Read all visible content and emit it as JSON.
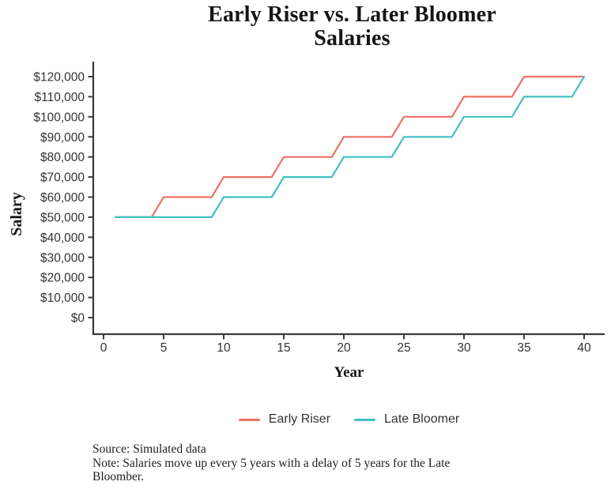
{
  "header": {
    "title_line1": "Early Riser vs. Later Bloomer",
    "title_line2": "Salaries"
  },
  "chart_data": {
    "type": "line",
    "title": "Early Riser vs. Later Bloomer Salaries",
    "xlabel": "Year",
    "ylabel": "Salary",
    "grid": false,
    "legend_position": "bottom",
    "xlim": [
      0,
      40
    ],
    "ylim": [
      0,
      120000
    ],
    "xticks": [
      0,
      5,
      10,
      15,
      20,
      25,
      30,
      35,
      40
    ],
    "ytick_values": [
      0,
      10000,
      20000,
      30000,
      40000,
      50000,
      60000,
      70000,
      80000,
      90000,
      100000,
      110000,
      120000
    ],
    "ytick_labels": [
      "$0",
      "$10,000",
      "$20,000",
      "$30,000",
      "$40,000",
      "$50,000",
      "$60,000",
      "$70,000",
      "$80,000",
      "$90,000",
      "$100,000",
      "$110,000",
      "$120,000"
    ],
    "x": [
      1,
      2,
      3,
      4,
      5,
      6,
      7,
      8,
      9,
      10,
      11,
      12,
      13,
      14,
      15,
      16,
      17,
      18,
      19,
      20,
      21,
      22,
      23,
      24,
      25,
      26,
      27,
      28,
      29,
      30,
      31,
      32,
      33,
      34,
      35,
      36,
      37,
      38,
      39,
      40
    ],
    "series": [
      {
        "name": "Early Riser",
        "color": "#ED7167",
        "values": [
          50000,
          50000,
          50000,
          50000,
          60000,
          60000,
          60000,
          60000,
          60000,
          70000,
          70000,
          70000,
          70000,
          70000,
          80000,
          80000,
          80000,
          80000,
          80000,
          90000,
          90000,
          90000,
          90000,
          90000,
          100000,
          100000,
          100000,
          100000,
          100000,
          110000,
          110000,
          110000,
          110000,
          110000,
          120000,
          120000,
          120000,
          120000,
          120000,
          120000
        ]
      },
      {
        "name": "Late Bloomer",
        "color": "#3FC1C4",
        "values": [
          50000,
          50000,
          50000,
          50000,
          50000,
          50000,
          50000,
          50000,
          50000,
          60000,
          60000,
          60000,
          60000,
          60000,
          70000,
          70000,
          70000,
          70000,
          70000,
          80000,
          80000,
          80000,
          80000,
          80000,
          90000,
          90000,
          90000,
          90000,
          90000,
          100000,
          100000,
          100000,
          100000,
          100000,
          110000,
          110000,
          110000,
          110000,
          110000,
          120000
        ]
      }
    ]
  },
  "legend": {
    "items": [
      {
        "label": "Early Riser",
        "color": "#ED7167"
      },
      {
        "label": "Late Bloomer",
        "color": "#3FC1C4"
      }
    ]
  },
  "footer": {
    "source": "Source: Simulated data",
    "note": "Note: Salaries move up every 5 years with a delay of 5 years for the Late Bloomber."
  },
  "colors": {
    "early_riser": "#ED7167",
    "late_bloomer": "#3FC1C4",
    "axis": "#3a3a3a",
    "text": "#333333"
  }
}
